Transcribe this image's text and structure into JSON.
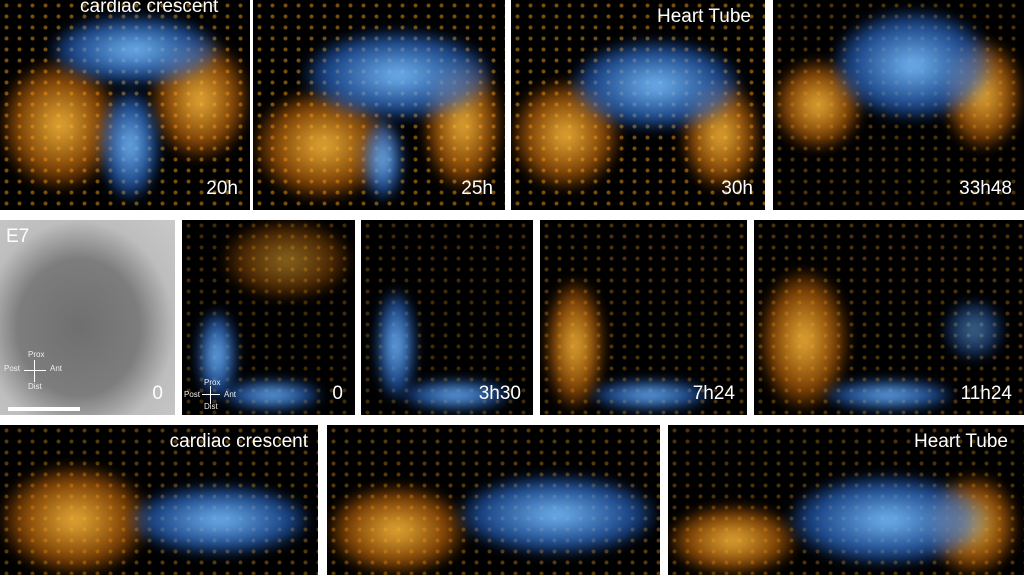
{
  "row1": [
    {
      "top_label": "cardiac crescent",
      "time": "20h"
    },
    {
      "top_label": "",
      "time": "25h"
    },
    {
      "top_label": "Heart Tube",
      "time": "30h"
    },
    {
      "top_label": "",
      "time": "33h48"
    }
  ],
  "row2": [
    {
      "top_label": "E7",
      "time": "0"
    },
    {
      "top_label": "",
      "time": "0"
    },
    {
      "top_label": "",
      "time": "3h30"
    },
    {
      "top_label": "",
      "time": "7h24"
    },
    {
      "top_label": "",
      "time": "11h24"
    }
  ],
  "row3": [
    {
      "top_label": "cardiac crescent"
    },
    {
      "top_label": ""
    },
    {
      "top_label": "Heart Tube"
    }
  ],
  "axes": {
    "prox": "Prox",
    "post": "Post",
    "ant": "Ant",
    "dist": "Dist"
  },
  "colors": {
    "nuclear_marker": "#4a9cff",
    "cell_marker": "#ffa826",
    "background": "#000000"
  }
}
